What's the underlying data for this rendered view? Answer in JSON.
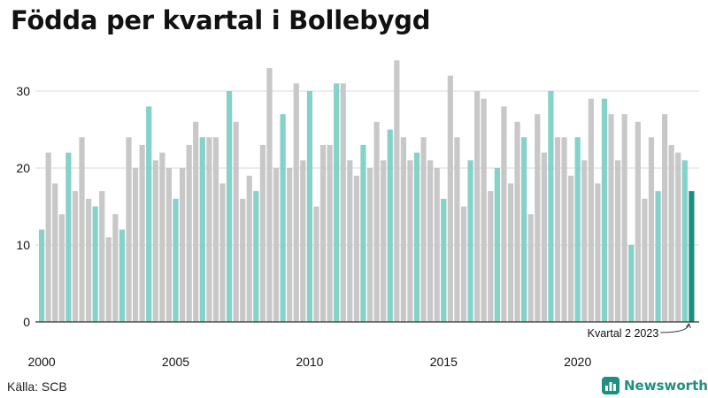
{
  "title": "Födda per kvartal i Bollebygd",
  "source": "Källa: SCB",
  "brand": "Newsworthy",
  "colors": {
    "q1": "#84d2c8",
    "other": "#c8c8c8",
    "highlight": "#1b8f7f",
    "grid": "#d9d9d9",
    "axis": "#333333",
    "brand": "#1f8f80"
  },
  "chart_data": {
    "type": "bar",
    "title": "Födda per kvartal i Bollebygd",
    "xlabel": "",
    "ylabel": "",
    "ylim": [
      0,
      35
    ],
    "yticks": [
      0,
      10,
      20,
      30
    ],
    "start_year": 2000,
    "start_quarter": 1,
    "xticks": [
      "2000",
      "2005",
      "2010",
      "2015",
      "2020"
    ],
    "series": [
      {
        "name": "Födda",
        "values": [
          12,
          22,
          18,
          14,
          22,
          17,
          24,
          16,
          15,
          17,
          11,
          14,
          12,
          24,
          20,
          23,
          28,
          21,
          22,
          20,
          16,
          20,
          23,
          26,
          24,
          24,
          24,
          18,
          30,
          26,
          16,
          19,
          17,
          23,
          33,
          20,
          27,
          20,
          31,
          21,
          30,
          15,
          23,
          23,
          31,
          31,
          21,
          19,
          23,
          20,
          26,
          21,
          25,
          34,
          24,
          21,
          22,
          24,
          21,
          20,
          16,
          32,
          24,
          15,
          21,
          30,
          29,
          17,
          20,
          28,
          18,
          26,
          24,
          14,
          27,
          22,
          30,
          24,
          24,
          19,
          24,
          21,
          29,
          18,
          29,
          27,
          21,
          27,
          10,
          26,
          16,
          24,
          17,
          27,
          23,
          22,
          21,
          17
        ]
      }
    ],
    "annotation": "Kvartal 2 2023"
  }
}
